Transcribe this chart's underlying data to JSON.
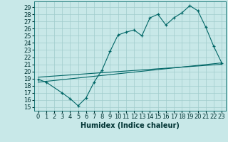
{
  "xlabel": "Humidex (Indice chaleur)",
  "background_color": "#c8e8e8",
  "grid_color": "#a0cccc",
  "line_color": "#006666",
  "xlim": [
    -0.5,
    23.5
  ],
  "ylim": [
    14.5,
    29.8
  ],
  "xticks": [
    0,
    1,
    2,
    3,
    4,
    5,
    6,
    7,
    8,
    9,
    10,
    11,
    12,
    13,
    14,
    15,
    16,
    17,
    18,
    19,
    20,
    21,
    22,
    23
  ],
  "yticks": [
    15,
    16,
    17,
    18,
    19,
    20,
    21,
    22,
    23,
    24,
    25,
    26,
    27,
    28,
    29
  ],
  "series1_x": [
    0,
    1,
    3,
    4,
    5,
    6,
    7,
    8,
    9,
    10,
    11,
    12,
    13,
    14,
    15,
    16,
    17,
    18,
    19,
    20,
    21,
    22,
    23
  ],
  "series1_y": [
    18.9,
    18.5,
    17.0,
    16.2,
    15.2,
    16.3,
    18.5,
    20.2,
    22.8,
    25.1,
    25.5,
    25.8,
    25.0,
    27.5,
    28.0,
    26.5,
    27.5,
    28.2,
    29.2,
    28.5,
    26.2,
    23.5,
    21.2
  ],
  "series2_x": [
    0,
    23
  ],
  "series2_y": [
    18.5,
    21.2
  ],
  "series3_x": [
    0,
    23
  ],
  "series3_y": [
    19.2,
    21.0
  ],
  "fontsize_label": 7,
  "fontsize_tick": 6
}
